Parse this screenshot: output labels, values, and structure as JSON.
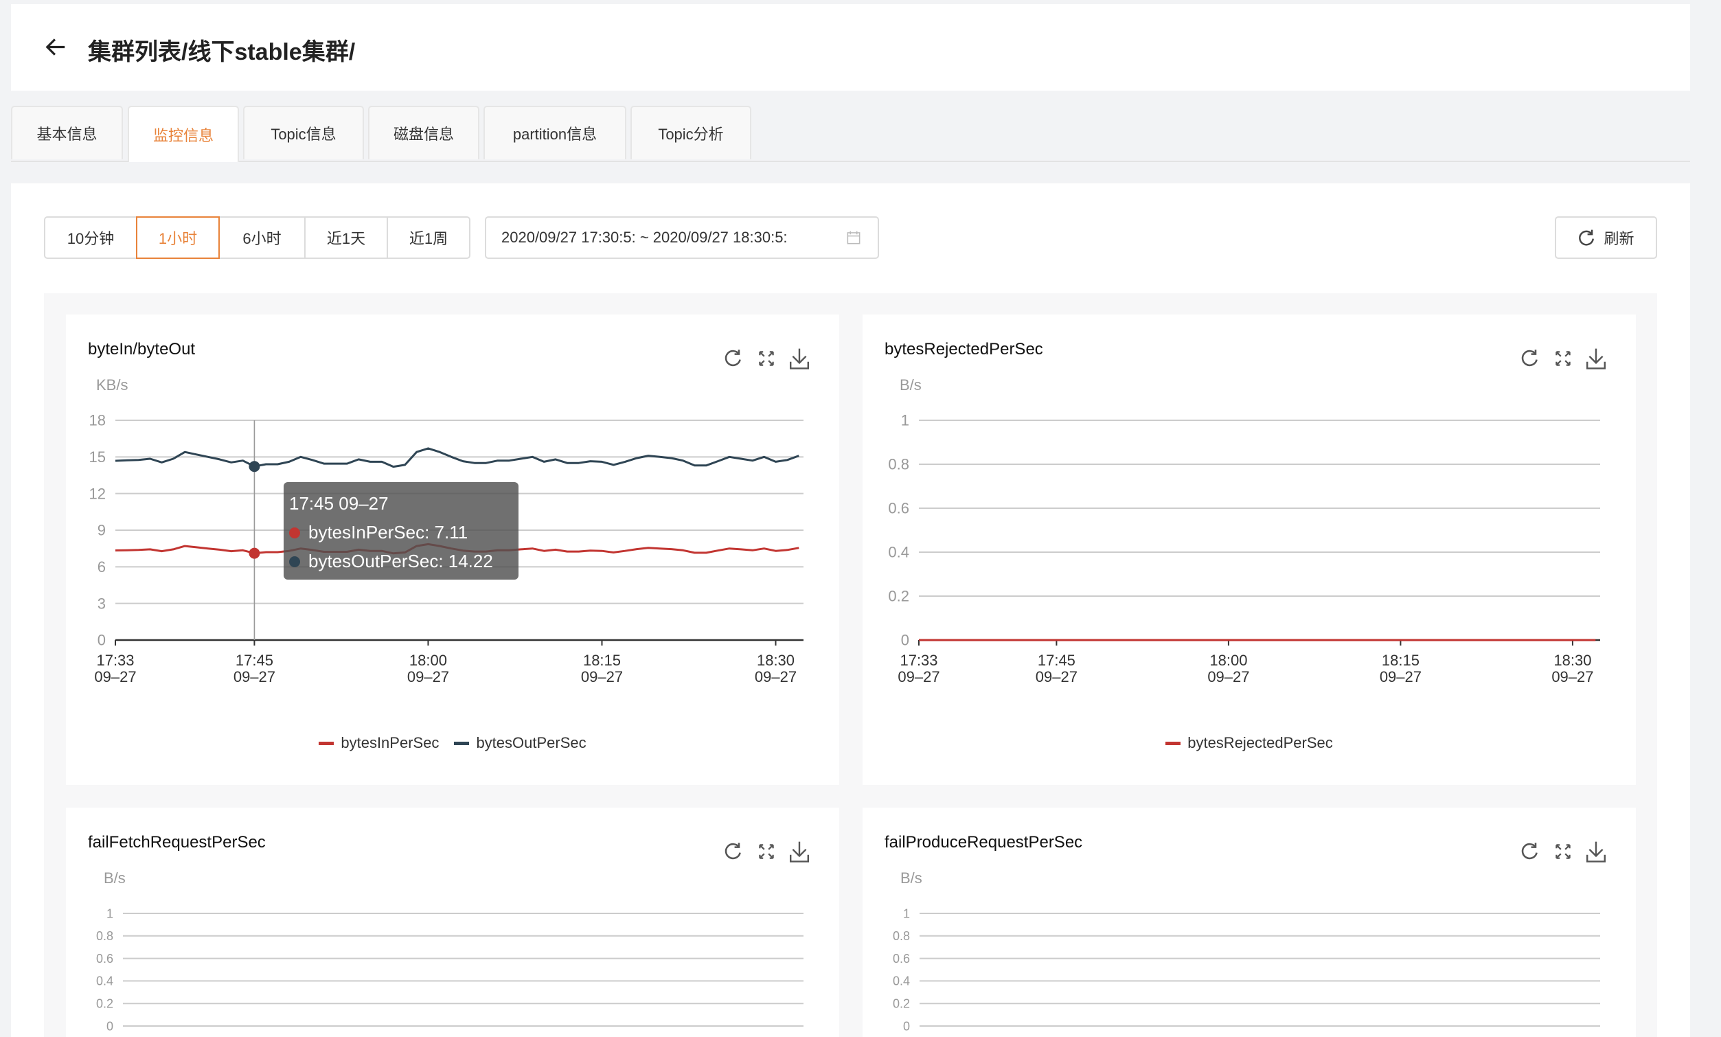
{
  "header": {
    "back_icon": "arrow-left-icon",
    "title": "集群列表/线下stable集群/"
  },
  "tabs": [
    {
      "label": "基本信息",
      "active": false
    },
    {
      "label": "监控信息",
      "active": true
    },
    {
      "label": "Topic信息",
      "active": false
    },
    {
      "label": "磁盘信息",
      "active": false
    },
    {
      "label": "partition信息",
      "active": false
    },
    {
      "label": "Topic分析",
      "active": false
    }
  ],
  "toolbar": {
    "ranges": [
      {
        "label": "10分钟",
        "active": false
      },
      {
        "label": "1小时",
        "active": true
      },
      {
        "label": "6小时",
        "active": false
      },
      {
        "label": "近1天",
        "active": false
      },
      {
        "label": "近1周",
        "active": false
      }
    ],
    "date_range": "2020/09/27 17:30:5: ~ 2020/09/27 18:30:5:",
    "calendar_icon": "calendar-icon",
    "refresh_label": "刷新",
    "refresh_icon": "refresh-icon"
  },
  "colors": {
    "accent": "#e8833a",
    "series_red": "#c23531",
    "series_dark": "#2f4554"
  },
  "tooltip": {
    "title": "17:45 09–27",
    "rows": [
      {
        "label": "bytesInPerSec: 7.11",
        "color": "#c23531"
      },
      {
        "label": "bytesOutPerSec: 14.22",
        "color": "#2f4554"
      }
    ]
  },
  "chart_data": [
    {
      "type": "line",
      "title": "byteIn/byteOut",
      "ylabel": "KB/s",
      "ylim": [
        0,
        18
      ],
      "yticks": [
        "0",
        "3",
        "6",
        "9",
        "12",
        "15",
        "18"
      ],
      "xticks": [
        {
          "time": "17:33",
          "date": "09–27"
        },
        {
          "time": "17:45",
          "date": "09–27"
        },
        {
          "time": "18:00",
          "date": "09–27"
        },
        {
          "time": "18:15",
          "date": "09–27"
        },
        {
          "time": "18:30",
          "date": "09–27"
        }
      ],
      "x": [
        "17:33",
        "17:34",
        "17:35",
        "17:36",
        "17:37",
        "17:38",
        "17:39",
        "17:40",
        "17:41",
        "17:42",
        "17:43",
        "17:44",
        "17:45",
        "17:46",
        "17:47",
        "17:48",
        "17:49",
        "17:50",
        "17:51",
        "17:52",
        "17:53",
        "17:54",
        "17:55",
        "17:56",
        "17:57",
        "17:58",
        "17:59",
        "18:00",
        "18:01",
        "18:02",
        "18:03",
        "18:04",
        "18:05",
        "18:06",
        "18:07",
        "18:08",
        "18:09",
        "18:10",
        "18:11",
        "18:12",
        "18:13",
        "18:14",
        "18:15",
        "18:16",
        "18:17",
        "18:18",
        "18:19",
        "18:20",
        "18:21",
        "18:22",
        "18:23",
        "18:24",
        "18:25",
        "18:26",
        "18:27",
        "18:28",
        "18:29",
        "18:30",
        "18:31",
        "18:32"
      ],
      "series": [
        {
          "name": "bytesInPerSec",
          "color": "#c23531",
          "values": [
            7.34,
            7.36,
            7.38,
            7.43,
            7.28,
            7.43,
            7.7,
            7.6,
            7.5,
            7.4,
            7.28,
            7.35,
            7.11,
            7.2,
            7.2,
            7.3,
            7.5,
            7.38,
            7.23,
            7.23,
            7.23,
            7.4,
            7.3,
            7.3,
            7.1,
            7.18,
            7.7,
            7.85,
            7.7,
            7.5,
            7.33,
            7.25,
            7.25,
            7.35,
            7.35,
            7.43,
            7.5,
            7.3,
            7.4,
            7.25,
            7.25,
            7.33,
            7.3,
            7.18,
            7.3,
            7.45,
            7.55,
            7.5,
            7.45,
            7.35,
            7.15,
            7.15,
            7.33,
            7.5,
            7.43,
            7.35,
            7.5,
            7.3,
            7.38,
            7.55
          ]
        },
        {
          "name": "bytesOutPerSec",
          "color": "#2f4554",
          "values": [
            14.68,
            14.72,
            14.75,
            14.85,
            14.55,
            14.85,
            15.4,
            15.2,
            15.0,
            14.8,
            14.55,
            14.7,
            14.22,
            14.4,
            14.4,
            14.6,
            15.0,
            14.75,
            14.45,
            14.45,
            14.45,
            14.8,
            14.6,
            14.6,
            14.2,
            14.35,
            15.4,
            15.7,
            15.4,
            15.0,
            14.65,
            14.5,
            14.5,
            14.7,
            14.7,
            14.85,
            15.0,
            14.6,
            14.8,
            14.5,
            14.5,
            14.65,
            14.6,
            14.35,
            14.6,
            14.9,
            15.1,
            15.0,
            14.9,
            14.7,
            14.3,
            14.3,
            14.65,
            15.0,
            14.85,
            14.7,
            15.0,
            14.6,
            14.75,
            15.1
          ]
        }
      ],
      "cursor": "17:45",
      "legend": "bottom",
      "grid": true
    },
    {
      "type": "line",
      "title": "bytesRejectedPerSec",
      "ylabel": "B/s",
      "ylim": [
        0,
        1
      ],
      "yticks": [
        "0",
        "0.2",
        "0.4",
        "0.6",
        "0.8",
        "1"
      ],
      "xticks": [
        {
          "time": "17:33",
          "date": "09–27"
        },
        {
          "time": "17:45",
          "date": "09–27"
        },
        {
          "time": "18:00",
          "date": "09–27"
        },
        {
          "time": "18:15",
          "date": "09–27"
        },
        {
          "time": "18:30",
          "date": "09–27"
        }
      ],
      "x": [
        "17:33",
        "18:32"
      ],
      "series": [
        {
          "name": "bytesRejectedPerSec",
          "color": "#c23531",
          "values": [
            0,
            0
          ]
        }
      ],
      "legend": "bottom",
      "grid": true
    },
    {
      "type": "line",
      "title": "failFetchRequestPerSec",
      "ylabel": "B/s",
      "ylim": [
        0,
        1
      ],
      "yticks": [
        "0",
        "0.2",
        "0.4",
        "0.6",
        "0.8",
        "1"
      ],
      "xticks": [],
      "x": [],
      "series": [],
      "grid": true
    },
    {
      "type": "line",
      "title": "failProduceRequestPerSec",
      "ylabel": "B/s",
      "ylim": [
        0,
        1
      ],
      "yticks": [
        "0",
        "0.2",
        "0.4",
        "0.6",
        "0.8",
        "1"
      ],
      "xticks": [],
      "x": [],
      "series": [],
      "grid": true
    }
  ]
}
